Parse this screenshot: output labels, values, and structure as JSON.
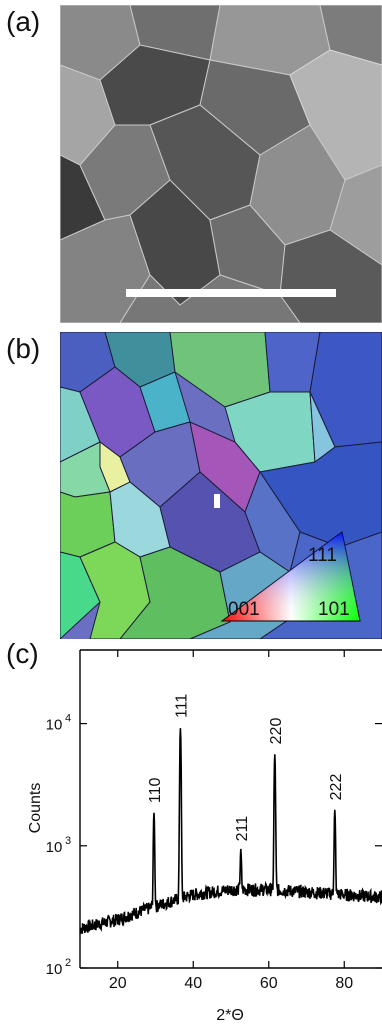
{
  "figure": {
    "panels": [
      {
        "label": "(a)",
        "content": "sem-micrograph"
      },
      {
        "label": "(b)",
        "content": "ebsd-orientation-map"
      },
      {
        "label": "(c)",
        "content": "xrd-pattern"
      }
    ],
    "ebsd_legend": {
      "corner_labels": [
        "111",
        "001",
        "101"
      ]
    }
  },
  "chart_data": {
    "type": "line",
    "xlabel": "2*Θ",
    "ylabel": "Counts",
    "xlim": [
      10,
      90
    ],
    "ylim": [
      100,
      40000
    ],
    "yscale": "log",
    "x_ticks": [
      20,
      40,
      60,
      80
    ],
    "y_ticks": [
      {
        "value": 100,
        "base": "10",
        "exp": "2"
      },
      {
        "value": 1000,
        "base": "10",
        "exp": "3"
      },
      {
        "value": 10000,
        "base": "10",
        "exp": "4"
      }
    ],
    "peaks": [
      {
        "label": "110",
        "x": 29.6,
        "y": 1850
      },
      {
        "label": "111",
        "x": 36.6,
        "y": 9200
      },
      {
        "label": "211",
        "x": 52.6,
        "y": 900
      },
      {
        "label": "220",
        "x": 61.6,
        "y": 5600
      },
      {
        "label": "222",
        "x": 77.5,
        "y": 1950
      }
    ],
    "background": [
      [
        10,
        210
      ],
      [
        20,
        250
      ],
      [
        30,
        320
      ],
      [
        40,
        400
      ],
      [
        50,
        440
      ],
      [
        60,
        440
      ],
      [
        70,
        420
      ],
      [
        80,
        400
      ],
      [
        90,
        380
      ]
    ],
    "line_color": "#000000"
  }
}
